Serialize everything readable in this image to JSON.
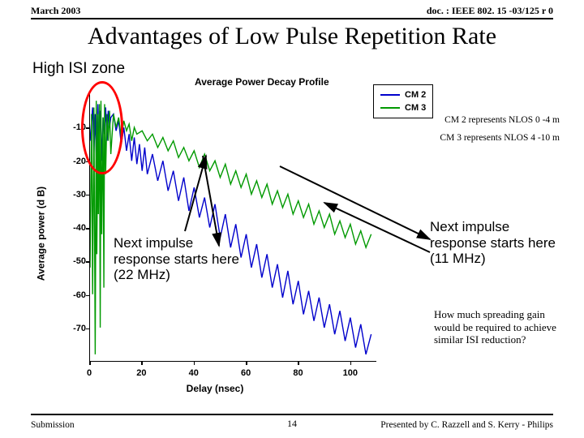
{
  "header": {
    "left": "March 2003",
    "right": "doc. : IEEE 802. 15 -03/125 r 0"
  },
  "title": "Advantages of Low Pulse Repetition Rate",
  "hizone_label": "High ISI zone",
  "chart": {
    "type": "line",
    "title": "Average Power Decay Profile",
    "xlabel": "Delay (nsec)",
    "ylabel": "Average power (d B)",
    "xlim": [
      0,
      110
    ],
    "ylim": [
      -80,
      0
    ],
    "xticks": [
      0,
      20,
      40,
      60,
      80,
      100
    ],
    "yticks": [
      -10,
      -20,
      -30,
      -40,
      -50,
      -60,
      -70
    ],
    "grid_color": "#e0e0e0",
    "background_color": "#ffffff",
    "series": [
      {
        "name": "CM2",
        "color": "#0000cc",
        "width": 1.4,
        "points": [
          [
            0,
            -14
          ],
          [
            1,
            -4
          ],
          [
            1.5,
            -18
          ],
          [
            2,
            -6
          ],
          [
            2.5,
            -22
          ],
          [
            3,
            -3
          ],
          [
            3.4,
            -16
          ],
          [
            4,
            -5
          ],
          [
            4.5,
            -20
          ],
          [
            5,
            -7
          ],
          [
            5.5,
            -12
          ],
          [
            6,
            -4
          ],
          [
            6.5,
            -14
          ],
          [
            7,
            -5
          ],
          [
            7.5,
            -10
          ],
          [
            8,
            -7
          ],
          [
            9,
            -6
          ],
          [
            10,
            -11
          ],
          [
            11,
            -8
          ],
          [
            12,
            -15
          ],
          [
            13,
            -10
          ],
          [
            14,
            -17
          ],
          [
            15,
            -12
          ],
          [
            16,
            -20
          ],
          [
            17,
            -13
          ],
          [
            18,
            -21
          ],
          [
            19,
            -15
          ],
          [
            20,
            -23
          ],
          [
            21,
            -16
          ],
          [
            22,
            -24
          ],
          [
            24,
            -18
          ],
          [
            26,
            -26
          ],
          [
            28,
            -20
          ],
          [
            30,
            -29
          ],
          [
            32,
            -23
          ],
          [
            34,
            -32
          ],
          [
            36,
            -25
          ],
          [
            38,
            -35
          ],
          [
            40,
            -28
          ],
          [
            42,
            -37
          ],
          [
            44,
            -31
          ],
          [
            46,
            -40
          ],
          [
            48,
            -33
          ],
          [
            50,
            -43
          ],
          [
            52,
            -36
          ],
          [
            54,
            -46
          ],
          [
            56,
            -39
          ],
          [
            58,
            -49
          ],
          [
            60,
            -42
          ],
          [
            62,
            -52
          ],
          [
            64,
            -45
          ],
          [
            66,
            -55
          ],
          [
            68,
            -48
          ],
          [
            70,
            -58
          ],
          [
            72,
            -51
          ],
          [
            74,
            -61
          ],
          [
            76,
            -53
          ],
          [
            78,
            -63
          ],
          [
            80,
            -56
          ],
          [
            82,
            -66
          ],
          [
            84,
            -59
          ],
          [
            86,
            -68
          ],
          [
            88,
            -61
          ],
          [
            90,
            -70
          ],
          [
            92,
            -63
          ],
          [
            94,
            -72
          ],
          [
            96,
            -65
          ],
          [
            98,
            -74
          ],
          [
            100,
            -67
          ],
          [
            102,
            -76
          ],
          [
            104,
            -69
          ],
          [
            106,
            -78
          ],
          [
            108,
            -72
          ]
        ]
      },
      {
        "name": "CM3",
        "color": "#009900",
        "width": 1.4,
        "points": [
          [
            0,
            -52
          ],
          [
            0.6,
            -6
          ],
          [
            1,
            -60
          ],
          [
            1.5,
            -4
          ],
          [
            2,
            -78
          ],
          [
            2.4,
            -2
          ],
          [
            2.6,
            -48
          ],
          [
            3,
            -6
          ],
          [
            3.2,
            -36
          ],
          [
            3.6,
            -3
          ],
          [
            3.9,
            -70
          ],
          [
            4.2,
            -2
          ],
          [
            4.5,
            -42
          ],
          [
            5,
            -7
          ],
          [
            5.3,
            -58
          ],
          [
            5.6,
            -3
          ],
          [
            6,
            -24
          ],
          [
            6.5,
            -6
          ],
          [
            7,
            -14
          ],
          [
            7.5,
            -5
          ],
          [
            8,
            -18
          ],
          [
            9,
            -6
          ],
          [
            10,
            -10
          ],
          [
            11,
            -7
          ],
          [
            12,
            -13
          ],
          [
            13,
            -8
          ],
          [
            14,
            -11
          ],
          [
            15,
            -9
          ],
          [
            16,
            -14
          ],
          [
            17,
            -10
          ],
          [
            18,
            -12
          ],
          [
            20,
            -11
          ],
          [
            22,
            -14
          ],
          [
            24,
            -12
          ],
          [
            26,
            -16
          ],
          [
            28,
            -13
          ],
          [
            30,
            -17
          ],
          [
            32,
            -14
          ],
          [
            34,
            -19
          ],
          [
            36,
            -16
          ],
          [
            38,
            -20
          ],
          [
            40,
            -17
          ],
          [
            42,
            -22
          ],
          [
            44,
            -18
          ],
          [
            46,
            -23
          ],
          [
            48,
            -20
          ],
          [
            50,
            -25
          ],
          [
            52,
            -21
          ],
          [
            54,
            -27
          ],
          [
            56,
            -23
          ],
          [
            58,
            -28
          ],
          [
            60,
            -24
          ],
          [
            62,
            -30
          ],
          [
            64,
            -26
          ],
          [
            66,
            -31
          ],
          [
            68,
            -27
          ],
          [
            70,
            -33
          ],
          [
            72,
            -29
          ],
          [
            74,
            -34
          ],
          [
            76,
            -30
          ],
          [
            78,
            -36
          ],
          [
            80,
            -32
          ],
          [
            82,
            -37
          ],
          [
            84,
            -33
          ],
          [
            86,
            -39
          ],
          [
            88,
            -35
          ],
          [
            90,
            -40
          ],
          [
            92,
            -36
          ],
          [
            94,
            -42
          ],
          [
            96,
            -38
          ],
          [
            98,
            -43
          ],
          [
            100,
            -39
          ],
          [
            102,
            -45
          ],
          [
            104,
            -41
          ],
          [
            106,
            -46
          ],
          [
            108,
            -42
          ]
        ]
      }
    ]
  },
  "legend": {
    "items": [
      {
        "label": "CM 2",
        "color": "#0000cc"
      },
      {
        "label": "CM 3",
        "color": "#009900"
      }
    ]
  },
  "notes": {
    "cm2": "CM 2 represents NLOS 0 -4 m",
    "cm3": "CM 3 represents NLOS 4 -10 m"
  },
  "callouts": {
    "left": "Next impulse response starts here (22 MHz)",
    "right": "Next impulse response starts here (11 MHz)"
  },
  "question": "How much spreading gain would be required to achieve similar ISI reduction?",
  "oval": {
    "color": "#ff0000",
    "cx_ns": 5,
    "cy_db": -10,
    "rx_ns": 8,
    "ry_db": 14,
    "width": 3
  },
  "arrows": {
    "stroke": "#000000",
    "width": 2,
    "paths": [
      {
        "from": [
          250,
          192
        ],
        "to": [
          270,
          303
        ]
      },
      {
        "from": [
          228,
          285
        ],
        "to": [
          254,
          192
        ]
      },
      {
        "from": [
          345,
          205
        ],
        "to": [
          530,
          295
        ]
      },
      {
        "from": [
          530,
          311
        ],
        "to": [
          400,
          250
        ]
      }
    ]
  },
  "footer": {
    "left": "Submission",
    "page": "14",
    "right": "Presented by C. Razzell and S. Kerry - Philips"
  }
}
